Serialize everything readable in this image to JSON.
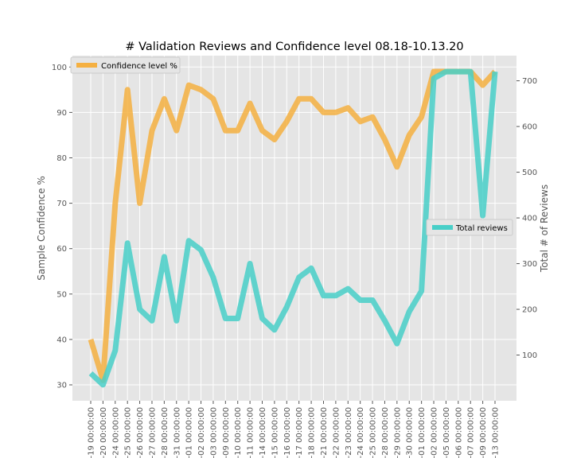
{
  "chart_data": {
    "type": "line",
    "title": "# Validation Reviews and Confidence level 08.18-10.13.20",
    "ylabel_left": "Sample Confidence %",
    "ylabel_right": "Total # of Reviews",
    "ylim_left": [
      26.5,
      102.5
    ],
    "ylim_right": [
      0,
      755
    ],
    "yticks_left": [
      30,
      40,
      50,
      60,
      70,
      80,
      90,
      100
    ],
    "yticks_right": [
      100,
      200,
      300,
      400,
      500,
      600,
      700
    ],
    "grid": true,
    "categories": [
      "-19 00:00:00",
      "-20 00:00:00",
      "-24 00:00:00",
      "-25 00:00:00",
      "-26 00:00:00",
      "-27 00:00:00",
      "-28 00:00:00",
      "-31 00:00:00",
      "-01 00:00:00",
      "-02 00:00:00",
      "-03 00:00:00",
      "-09 00:00:00",
      "-10 00:00:00",
      "-11 00:00:00",
      "-14 00:00:00",
      "-15 00:00:00",
      "-16 00:00:00",
      "-17 00:00:00",
      "-18 00:00:00",
      "-21 00:00:00",
      "-22 00:00:00",
      "-23 00:00:00",
      "-24 00:00:00",
      "-25 00:00:00",
      "-28 00:00:00",
      "-29 00:00:00",
      "-30 00:00:00",
      "-01 00:00:00",
      "-02 00:00:00",
      "-05 00:00:00",
      "-06 00:00:00",
      "-07 00:00:00",
      "-09 00:00:00",
      "-13 00:00:00"
    ],
    "series": [
      {
        "name": "Confidence level %",
        "axis": "left",
        "color": "#f5b041",
        "values": [
          40,
          31,
          70,
          95,
          70,
          86,
          93,
          86,
          96,
          95,
          93,
          86,
          86,
          92,
          86,
          84,
          88,
          93,
          93,
          90,
          90,
          91,
          88,
          89,
          84,
          78,
          85,
          89,
          99,
          99,
          99,
          99,
          96,
          99
        ]
      },
      {
        "name": "Total reviews",
        "axis": "right",
        "color": "#48cfc8",
        "values": [
          60,
          35,
          110,
          345,
          200,
          175,
          315,
          175,
          350,
          330,
          270,
          180,
          180,
          300,
          180,
          155,
          205,
          270,
          290,
          230,
          230,
          245,
          220,
          220,
          175,
          125,
          195,
          240,
          705,
          720,
          720,
          720,
          405,
          720
        ]
      }
    ],
    "legend": [
      {
        "label": "Confidence level %",
        "placement": "top-left"
      },
      {
        "label": "Total reviews",
        "placement": "center-right"
      }
    ]
  }
}
